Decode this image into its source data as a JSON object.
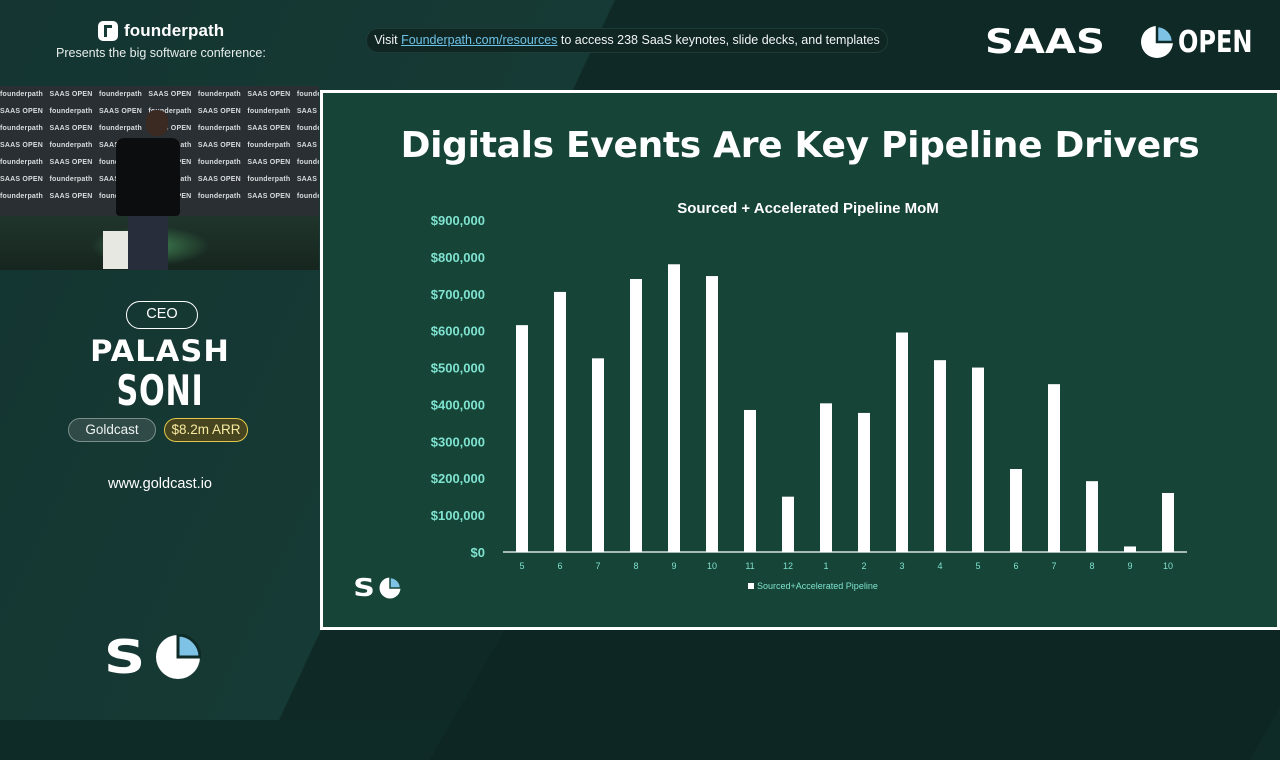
{
  "header": {
    "brand_name": "founderpath",
    "brand_subtitle": "Presents the big software conference:",
    "visit_prefix": "Visit ",
    "visit_link": "Founderpath.com/resources",
    "visit_suffix": " to access 238 SaaS keynotes, slide decks, and templates",
    "event_logo_left": "SAAS",
    "event_logo_right": "OPEN"
  },
  "video": {
    "backdrop_brand_a": "founderpath",
    "backdrop_brand_b": "SAAS OPEN"
  },
  "speaker": {
    "role": "CEO",
    "first_name": "PALASH",
    "last_name": "SONI",
    "company": "Goldcast",
    "arr": "$8.2m ARR",
    "website": "www.goldcast.io"
  },
  "footer_logo": "S",
  "slide": {
    "title": "Digitals Events Are Key Pipeline Drivers",
    "logo_text": "S"
  },
  "colors": {
    "background": "#0f2b27",
    "slide_bg": "#164437",
    "accent_teal": "#7fe3d0",
    "logo_mark_blue": "#7ec3e6",
    "arr_yellow": "#e3c84a"
  },
  "chart_data": {
    "type": "bar",
    "title": "Sourced + Accelerated Pipeline MoM",
    "categories": [
      "5",
      "6",
      "7",
      "8",
      "9",
      "10",
      "11",
      "12",
      "1",
      "2",
      "3",
      "4",
      "5",
      "6",
      "7",
      "8",
      "9",
      "10"
    ],
    "series": [
      {
        "name": "Sourced+Accelerated Pipeline",
        "values": [
          615000,
          705000,
          525000,
          740000,
          780000,
          748000,
          385000,
          150000,
          403000,
          377000,
          595000,
          520000,
          500000,
          225000,
          455000,
          192000,
          15000,
          160000
        ]
      }
    ],
    "y_ticks": [
      "$0",
      "$100,000",
      "$200,000",
      "$300,000",
      "$400,000",
      "$500,000",
      "$600,000",
      "$700,000",
      "$800,000",
      "$900,000"
    ],
    "ylim": [
      0,
      900000
    ],
    "grid": false,
    "legend_position": "bottom"
  }
}
